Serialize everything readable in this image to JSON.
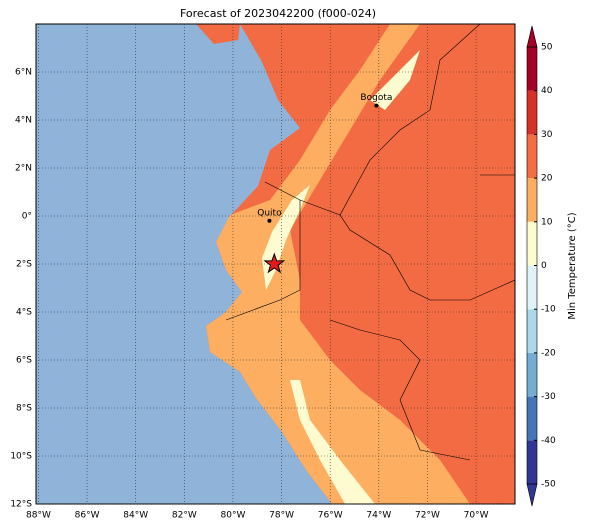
{
  "map": {
    "title": "Forecast of 2023042200 (f000-024)",
    "xlim": [
      -88.1,
      -68.4
    ],
    "ylim": [
      -12,
      8
    ],
    "xticks": [
      {
        "value": -88,
        "label": "88°W"
      },
      {
        "value": -86,
        "label": "86°W"
      },
      {
        "value": -84,
        "label": "84°W"
      },
      {
        "value": -82,
        "label": "82°W"
      },
      {
        "value": -80,
        "label": "80°W"
      },
      {
        "value": -78,
        "label": "78°W"
      },
      {
        "value": -76,
        "label": "76°W"
      },
      {
        "value": -74,
        "label": "74°W"
      },
      {
        "value": -72,
        "label": "72°W"
      },
      {
        "value": -70,
        "label": "70°W"
      }
    ],
    "yticks": [
      {
        "value": 6,
        "label": "6°N"
      },
      {
        "value": 4,
        "label": "4°N"
      },
      {
        "value": 2,
        "label": "2°N"
      },
      {
        "value": 0,
        "label": "0°"
      },
      {
        "value": -2,
        "label": "2°S"
      },
      {
        "value": -4,
        "label": "4°S"
      },
      {
        "value": -6,
        "label": "6°S"
      },
      {
        "value": -8,
        "label": "8°S"
      },
      {
        "value": -10,
        "label": "10°S"
      },
      {
        "value": -12,
        "label": "12°S"
      }
    ],
    "grid": true,
    "cities": [
      {
        "name": "Bogota",
        "lon": -74.1,
        "lat": 4.6
      },
      {
        "name": "Quito",
        "lon": -78.5,
        "lat": -0.2
      }
    ],
    "marker": {
      "lon": -78.3,
      "lat": -2.0,
      "color": "#e31a1c"
    },
    "colorbar": {
      "label": "Min Temperature (°C)",
      "lim": [
        -50,
        50
      ],
      "ticks": [
        -50,
        -40,
        -30,
        -20,
        -10,
        0,
        10,
        20,
        30,
        40,
        50
      ],
      "colors": [
        "#313695",
        "#4575b4",
        "#74add1",
        "#abd9e9",
        "#e0f3f8",
        "#fffbd0",
        "#fdae61",
        "#f46d43",
        "#d73027",
        "#a50026"
      ]
    }
  }
}
